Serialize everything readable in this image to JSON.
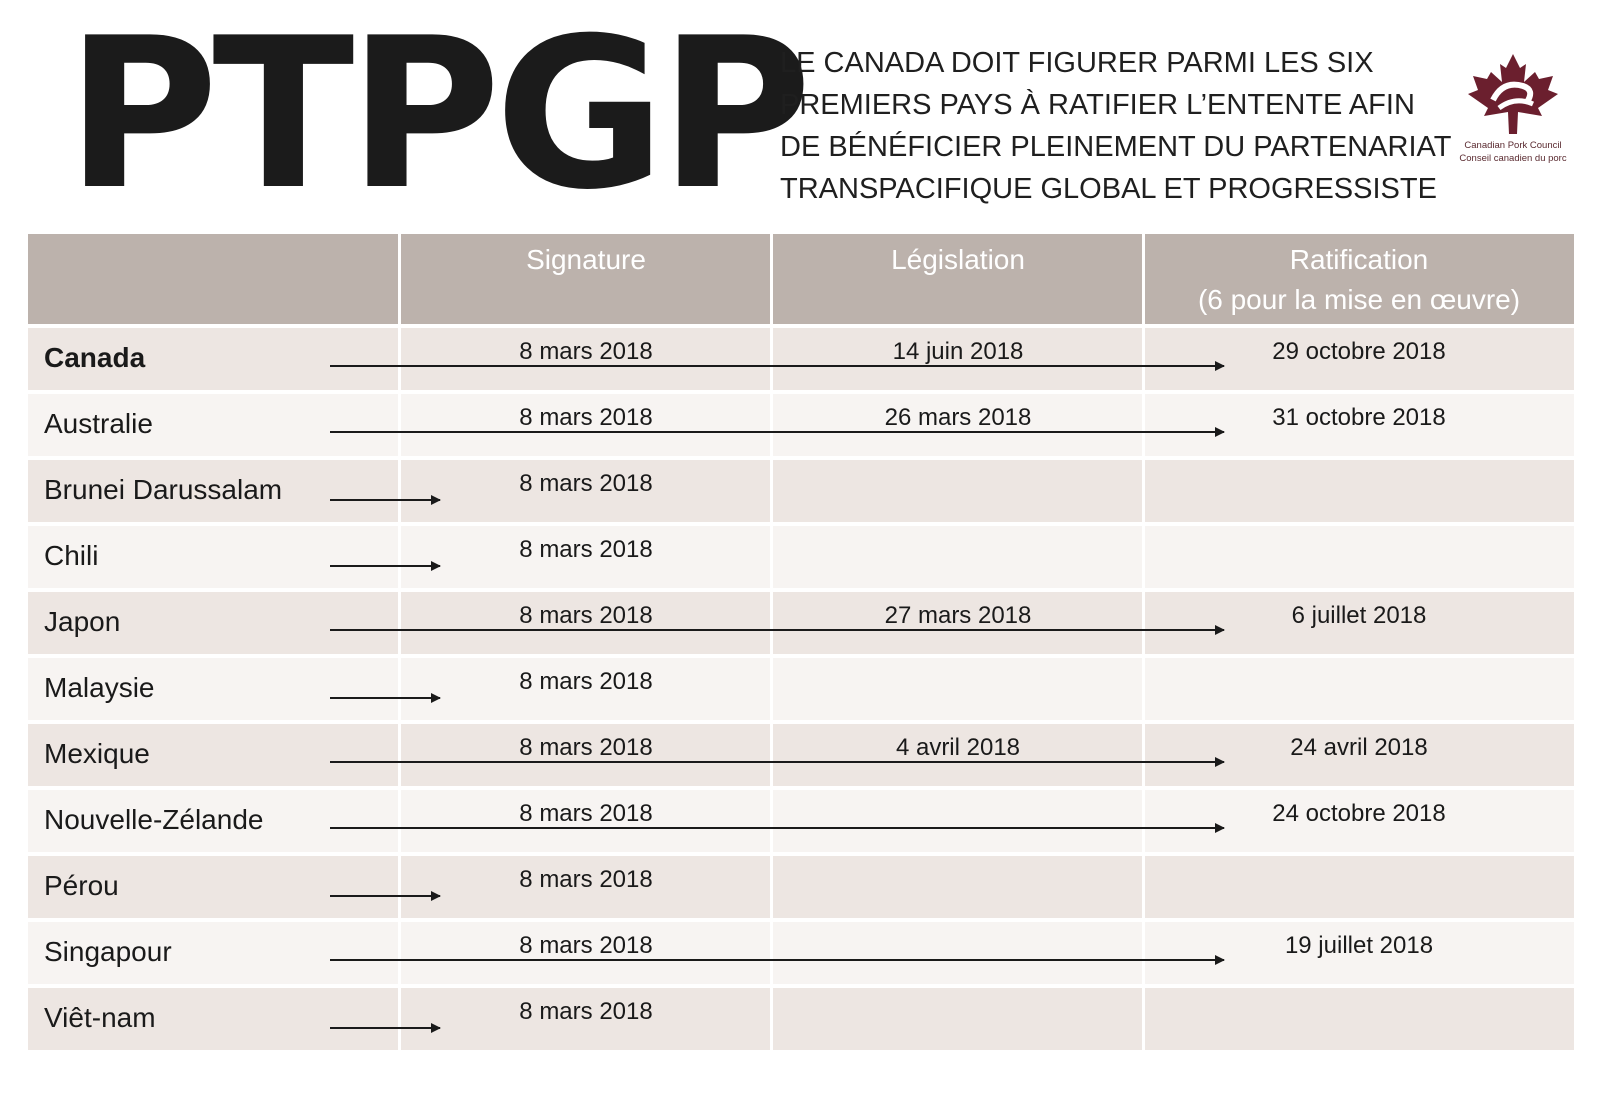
{
  "header": {
    "title": "PTPGP",
    "subtitle_lines": [
      "LE CANADA DOIT FIGURER PARMI LES SIX",
      "PREMIERS PAYS À RATIFIER L’ENTENTE AFIN",
      "DE BÉNÉFICIER PLEINEMENT DU PARTENARIAT",
      "TRANSPACIFIQUE GLOBAL ET PROGRESSISTE"
    ],
    "brand_en": "Canadian Pork Council",
    "brand_fr": "Conseil canadien du porc",
    "brand_icon": "maple-leaf-icon",
    "brand_color": "#6b1f2e"
  },
  "table": {
    "columns": [
      {
        "label": "Signature"
      },
      {
        "label": "Législation"
      },
      {
        "label": "Ratification",
        "sub": "(6 pour la mise en œuvre)"
      }
    ],
    "header_color": "#bcb2ac",
    "rows": [
      {
        "country": "Canada",
        "bold": true,
        "signature": "8 mars 2018",
        "legislation": "14 juin 2018",
        "ratification": "29 octobre 2018",
        "stage": "ratification"
      },
      {
        "country": "Australie",
        "signature": "8 mars 2018",
        "legislation": "26 mars 2018",
        "ratification": "31 octobre 2018",
        "stage": "ratification"
      },
      {
        "country": "Brunei Darussalam",
        "signature": "8 mars 2018",
        "legislation": "",
        "ratification": "",
        "stage": "signature"
      },
      {
        "country": "Chili",
        "signature": "8 mars 2018",
        "legislation": "",
        "ratification": "",
        "stage": "signature"
      },
      {
        "country": "Japon",
        "signature": "8 mars 2018",
        "legislation": "27 mars 2018",
        "ratification": "6 juillet 2018",
        "stage": "ratification"
      },
      {
        "country": "Malaysie",
        "signature": "8 mars 2018",
        "legislation": "",
        "ratification": "",
        "stage": "signature"
      },
      {
        "country": "Mexique",
        "signature": "8 mars 2018",
        "legislation": "4 avril 2018",
        "ratification": "24 avril 2018",
        "stage": "ratification"
      },
      {
        "country": "Nouvelle-Zélande",
        "signature": "8 mars 2018",
        "legislation": "",
        "ratification": "24 octobre 2018",
        "stage": "ratification"
      },
      {
        "country": "Pérou",
        "signature": "8 mars 2018",
        "legislation": "",
        "ratification": "",
        "stage": "signature"
      },
      {
        "country": "Singapour",
        "signature": "8 mars 2018",
        "legislation": "",
        "ratification": "19 juillet 2018",
        "stage": "ratification"
      },
      {
        "country": "Viêt-nam",
        "signature": "8 mars 2018",
        "legislation": "",
        "ratification": "",
        "stage": "signature"
      }
    ]
  }
}
